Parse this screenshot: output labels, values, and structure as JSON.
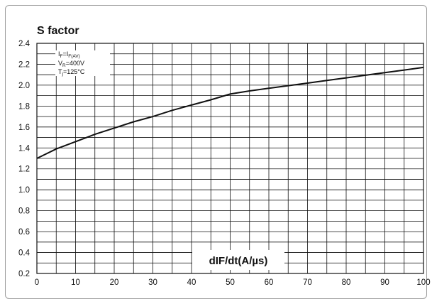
{
  "chart_data": {
    "type": "line",
    "title": "S factor",
    "xlabel": "dIF/dt(A/µs)",
    "ylabel": "",
    "xlim": [
      0,
      100
    ],
    "ylim": [
      0.2,
      2.4
    ],
    "x_ticks": [
      "0",
      "10",
      "20",
      "30",
      "40",
      "50",
      "60",
      "70",
      "80",
      "90",
      "100"
    ],
    "y_ticks": [
      "0.2",
      "0.4",
      "0.6",
      "0.8",
      "1.0",
      "1.2",
      "1.4",
      "1.6",
      "1.8",
      "2.0",
      "2.2",
      "2.4"
    ],
    "grid": true,
    "conditions": {
      "line1": {
        "a": "I",
        "b": "F",
        "c": "=I",
        "d": "F(AV)"
      },
      "line2": {
        "a": "V",
        "b": "R",
        "c": "=400V"
      },
      "line3": {
        "a": "T",
        "b": "j",
        "c": "=125°C"
      }
    },
    "series": [
      {
        "x": [
          0,
          5,
          10,
          15,
          20,
          25,
          30,
          35,
          40,
          45,
          50,
          55,
          60,
          65,
          70,
          75,
          80,
          85,
          90,
          95,
          100
        ],
        "y": [
          1.3,
          1.39,
          1.46,
          1.53,
          1.59,
          1.65,
          1.7,
          1.76,
          1.81,
          1.86,
          1.915,
          1.945,
          1.97,
          1.995,
          2.02,
          2.045,
          2.07,
          2.095,
          2.12,
          2.145,
          2.17
        ]
      }
    ]
  }
}
